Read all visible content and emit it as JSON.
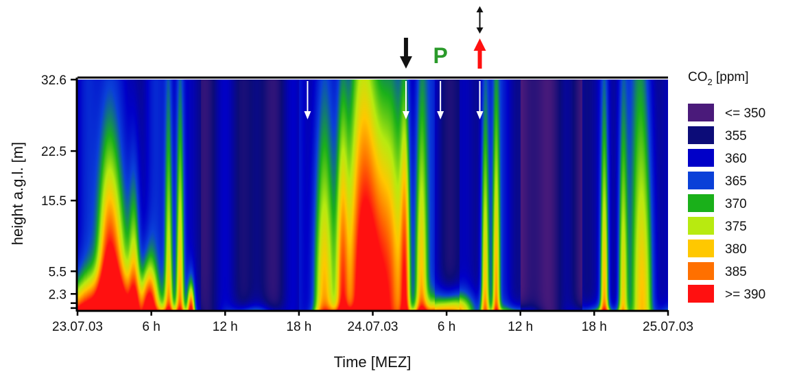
{
  "chart_data": {
    "type": "heatmap",
    "title": "",
    "xlabel": "Time [MEZ]",
    "ylabel": "height a.g.l. [m]",
    "x_unit_hours": [
      0,
      48
    ],
    "ylim_m": [
      0,
      32.6
    ],
    "x_ticks": [
      {
        "hour": 0,
        "label": "23.07.03"
      },
      {
        "hour": 6,
        "label": "6 h"
      },
      {
        "hour": 12,
        "label": "12 h"
      },
      {
        "hour": 18,
        "label": "18 h"
      },
      {
        "hour": 24,
        "label": "24.07.03"
      },
      {
        "hour": 30,
        "label": "6 h"
      },
      {
        "hour": 36,
        "label": "12 h"
      },
      {
        "hour": 42,
        "label": "18 h"
      },
      {
        "hour": 48,
        "label": "25.07.03"
      }
    ],
    "y_ticks": [
      {
        "m": 32.6,
        "label": "32.6"
      },
      {
        "m": 22.5,
        "label": "22.5"
      },
      {
        "m": 15.5,
        "label": "15.5"
      },
      {
        "m": 5.5,
        "label": "5.5"
      },
      {
        "m": 2.3,
        "label": "2.3"
      }
    ],
    "legend": {
      "title_main": "CO",
      "title_sub": "2",
      "title_unit": " [ppm]",
      "entries": [
        {
          "label": "<= 350",
          "color": "#4a1a7a"
        },
        {
          "label": "355",
          "color": "#0c0c78"
        },
        {
          "label": "360",
          "color": "#0000c8"
        },
        {
          "label": "365",
          "color": "#0a40d8"
        },
        {
          "label": "370",
          "color": "#1ab01a"
        },
        {
          "label": "375",
          "color": "#b8ea10"
        },
        {
          "label": "380",
          "color": "#ffc800"
        },
        {
          "label": "385",
          "color": "#ff7000"
        },
        {
          "label": ">= 390",
          "color": "#ff1010"
        }
      ]
    },
    "white_arrow_hours": [
      18.7,
      26.7,
      29.5,
      32.7
    ],
    "top_markers": [
      {
        "kind": "down-arrow",
        "hour": 26.7,
        "color": "#111111"
      },
      {
        "kind": "label",
        "hour": 29.5,
        "text": "P",
        "color": "#2a9a2a"
      },
      {
        "kind": "up-arrow",
        "hour": 32.7,
        "color": "#ff1010"
      },
      {
        "kind": "double-arrow",
        "hour": 32.7,
        "color": "#111111"
      }
    ],
    "events": [
      {
        "center": 1.5,
        "width": 4.5,
        "strength": 1.0,
        "depth": 4.5
      },
      {
        "center": 2.4,
        "width": 0.8,
        "strength": 0.7,
        "depth": 26
      },
      {
        "center": 3.0,
        "width": 1.2,
        "strength": 0.9,
        "depth": 18
      },
      {
        "center": 4.6,
        "width": 0.5,
        "strength": 0.8,
        "depth": 20
      },
      {
        "center": 5.8,
        "width": 0.6,
        "strength": 0.9,
        "depth": 7
      },
      {
        "center": 7.4,
        "width": 0.35,
        "strength": 0.7,
        "depth": 32
      },
      {
        "center": 8.3,
        "width": 0.35,
        "strength": 0.8,
        "depth": 32
      },
      {
        "center": 9.2,
        "width": 0.3,
        "strength": 1.0,
        "depth": 4
      },
      {
        "center": 20.0,
        "width": 0.9,
        "strength": 0.8,
        "depth": 28
      },
      {
        "center": 21.5,
        "width": 0.5,
        "strength": 0.8,
        "depth": 32
      },
      {
        "center": 23.2,
        "width": 1.6,
        "strength": 1.1,
        "depth": 32
      },
      {
        "center": 25.2,
        "width": 1.6,
        "strength": 0.95,
        "depth": 30
      },
      {
        "center": 26.6,
        "width": 0.4,
        "strength": 0.8,
        "depth": 32
      },
      {
        "center": 27.9,
        "width": 0.5,
        "strength": 0.7,
        "depth": 32
      },
      {
        "center": 30.5,
        "width": 1.8,
        "strength": 0.9,
        "depth": 2.5
      },
      {
        "center": 33.1,
        "width": 0.35,
        "strength": 0.8,
        "depth": 32
      },
      {
        "center": 34.0,
        "width": 0.3,
        "strength": 0.7,
        "depth": 28
      },
      {
        "center": 42.8,
        "width": 0.35,
        "strength": 0.8,
        "depth": 30
      },
      {
        "center": 44.3,
        "width": 0.4,
        "strength": 0.7,
        "depth": 32
      },
      {
        "center": 46.0,
        "width": 0.9,
        "strength": 0.7,
        "depth": 32
      }
    ]
  }
}
